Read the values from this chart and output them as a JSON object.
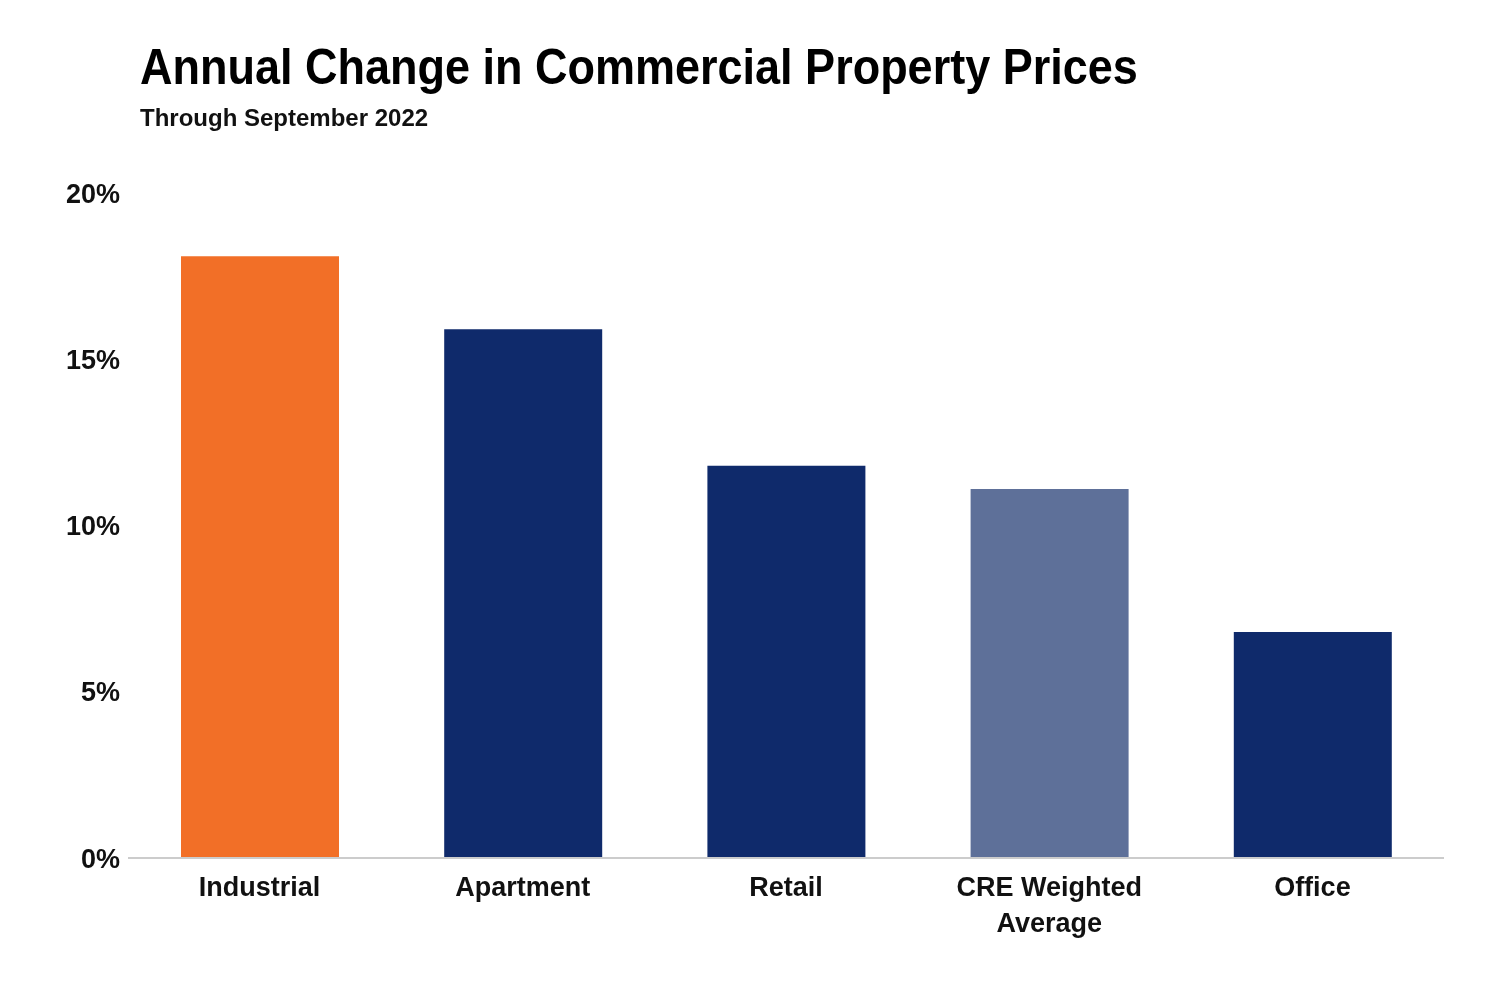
{
  "chart_data": {
    "type": "bar",
    "title": "Annual Change in Commercial Property Prices",
    "subtitle": "Through September 2022",
    "categories": [
      "Industrial",
      "Apartment",
      "Retail",
      "CRE Weighted Average",
      "Office"
    ],
    "values": [
      18.1,
      15.9,
      11.8,
      11.1,
      6.8
    ],
    "colors": [
      "#f26f27",
      "#0f2a6b",
      "#0f2a6b",
      "#5e7099",
      "#0f2a6b"
    ],
    "ylim": [
      0,
      20
    ],
    "yticks": [
      {
        "value": 0,
        "label": "0%"
      },
      {
        "value": 5,
        "label": "5%"
      },
      {
        "value": 10,
        "label": "10%"
      },
      {
        "value": 15,
        "label": "15%"
      },
      {
        "value": 20,
        "label": "20%"
      }
    ],
    "grid": false
  }
}
